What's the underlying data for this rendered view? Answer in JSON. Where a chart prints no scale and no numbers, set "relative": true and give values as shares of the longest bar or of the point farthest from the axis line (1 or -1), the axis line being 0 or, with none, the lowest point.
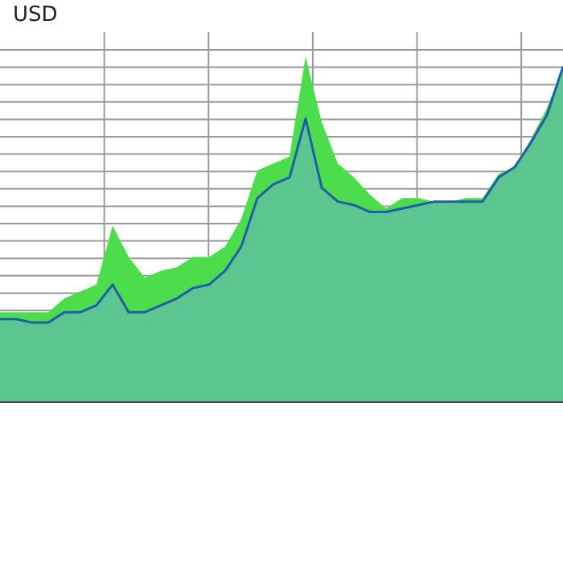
{
  "chart_data": {
    "type": "area",
    "ylabel": "USD",
    "relative": true,
    "grid": true,
    "categories": [
      null,
      null,
      null,
      null,
      null,
      null,
      null,
      null,
      null,
      null,
      null,
      null,
      null,
      null,
      null,
      null,
      null,
      null,
      null,
      null,
      null,
      null,
      null,
      null,
      null,
      null,
      null,
      null,
      null,
      null,
      null,
      null,
      null,
      null,
      null,
      null
    ],
    "series": [
      {
        "color": "#4cdc4c",
        "values": [
          0.26,
          0.26,
          0.26,
          0.26,
          0.3,
          0.32,
          0.34,
          0.51,
          0.42,
          0.36,
          0.38,
          0.39,
          0.42,
          0.42,
          0.45,
          0.53,
          0.67,
          0.69,
          0.71,
          1,
          0.81,
          0.69,
          0.65,
          0.6,
          0.56,
          0.59,
          0.59,
          0.58,
          0.58,
          0.59,
          0.59,
          0.66,
          0.68,
          0.76,
          0.85,
          0.97
        ]
      },
      {
        "color": "#1f5fa8",
        "values": [
          0.24,
          0.24,
          0.23,
          0.23,
          0.26,
          0.26,
          0.28,
          0.34,
          0.26,
          0.26,
          0.28,
          0.3,
          0.33,
          0.34,
          0.38,
          0.45,
          0.59,
          0.63,
          0.65,
          0.82,
          0.62,
          0.58,
          0.57,
          0.55,
          0.55,
          0.56,
          0.57,
          0.58,
          0.58,
          0.58,
          0.58,
          0.65,
          0.68,
          0.75,
          0.83,
          0.97
        ]
      }
    ]
  }
}
